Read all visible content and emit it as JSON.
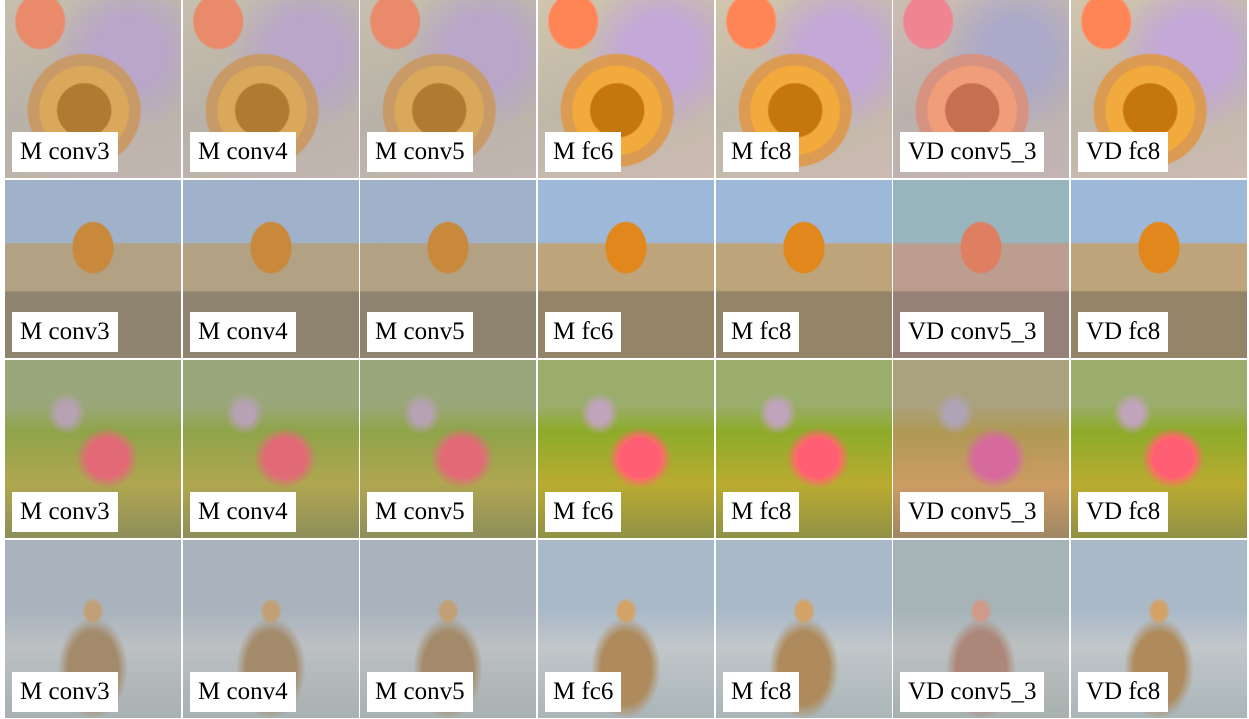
{
  "grid": {
    "rows": [
      {
        "cells": [
          {
            "label": "M conv3"
          },
          {
            "label": "M conv4"
          },
          {
            "label": "M conv5"
          },
          {
            "label": "M fc6"
          },
          {
            "label": "M fc8"
          },
          {
            "label": "VD conv5_3"
          },
          {
            "label": "VD fc8"
          }
        ]
      },
      {
        "cells": [
          {
            "label": "M conv3"
          },
          {
            "label": "M conv4"
          },
          {
            "label": "M conv5"
          },
          {
            "label": "M fc6"
          },
          {
            "label": "M fc8"
          },
          {
            "label": "VD conv5_3"
          },
          {
            "label": "VD fc8"
          }
        ]
      },
      {
        "cells": [
          {
            "label": "M conv3"
          },
          {
            "label": "M conv4"
          },
          {
            "label": "M conv5"
          },
          {
            "label": "M fc6"
          },
          {
            "label": "M fc8"
          },
          {
            "label": "VD conv5_3"
          },
          {
            "label": "VD fc8"
          }
        ]
      },
      {
        "cells": [
          {
            "label": "M conv3"
          },
          {
            "label": "M conv4"
          },
          {
            "label": "M conv5"
          },
          {
            "label": "M fc6"
          },
          {
            "label": "M fc8"
          },
          {
            "label": "VD conv5_3"
          },
          {
            "label": "VD fc8"
          }
        ]
      }
    ]
  }
}
